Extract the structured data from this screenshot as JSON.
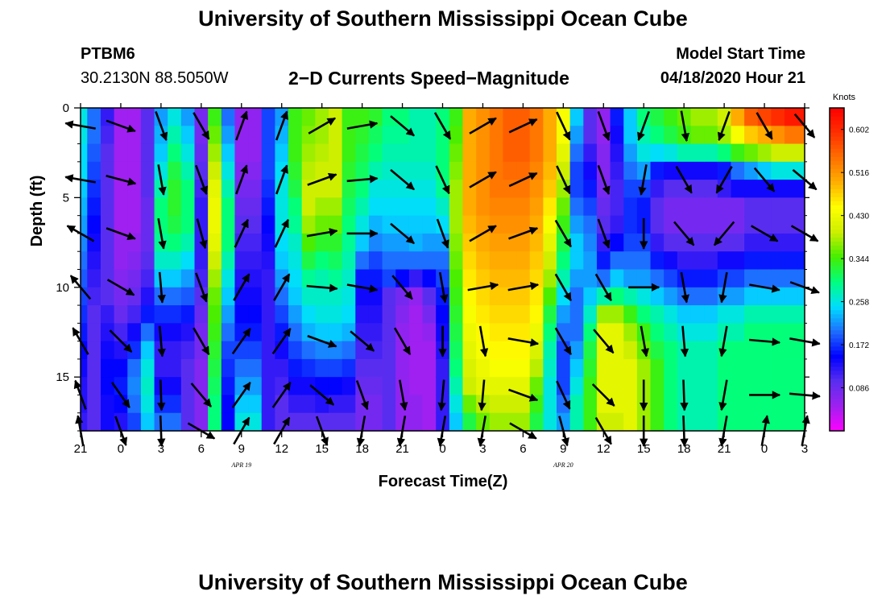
{
  "header": {
    "title": "University of Southern Mississippi Ocean Cube",
    "station": "PTBM6",
    "coordinates": "30.2130N 88.5050W",
    "subtitle": "2−D Currents Speed−Magnitude",
    "model_start_label": "Model Start Time",
    "model_start_value": "04/18/2020 Hour 21"
  },
  "footer": {
    "title": "University of Southern Mississippi Ocean Cube"
  },
  "chart_data": {
    "type": "heatmap",
    "title": "2−D Currents Speed−Magnitude",
    "xlabel": "Forecast Time(Z)",
    "ylabel": "Depth (ft)",
    "x_tick_labels": [
      "21",
      "0",
      "3",
      "6",
      "9",
      "12",
      "15",
      "18",
      "21",
      "0",
      "3",
      "6",
      "9",
      "12",
      "15",
      "18",
      "21",
      "0",
      "3"
    ],
    "date_labels": [
      {
        "label": "APR 19",
        "at_tick": 4
      },
      {
        "label": "APR 20",
        "at_tick": 12
      }
    ],
    "y_ticks": [
      0,
      5,
      10,
      15
    ],
    "ylim": [
      0,
      18
    ],
    "y_reversed": true,
    "colorbar": {
      "unit": "Knots",
      "min": 0.0,
      "max": 0.645,
      "tick_labels": [
        "0.602",
        "0.516",
        "0.430",
        "0.344",
        "0.258",
        "0.172",
        "0.086"
      ],
      "tick_values": [
        0.602,
        0.516,
        0.43,
        0.344,
        0.258,
        0.172,
        0.086
      ],
      "colors": [
        "#ff00ff",
        "#a020f0",
        "#5a2ef0",
        "#0000ff",
        "#1e6cff",
        "#00ddff",
        "#00ff80",
        "#44ee00",
        "#ccee00",
        "#ffff00",
        "#ffb000",
        "#ff7000",
        "#ff3000",
        "#ff0000"
      ]
    },
    "time_hours": [
      0,
      1,
      2,
      3,
      4,
      5,
      6,
      7,
      8,
      9,
      10,
      11,
      12,
      13,
      14,
      15,
      16,
      17,
      18,
      19,
      20,
      21,
      22,
      23,
      24,
      25,
      26,
      27,
      28,
      29,
      30,
      31,
      32,
      33,
      34,
      35,
      36,
      37,
      38,
      39,
      40,
      41,
      42,
      43,
      44,
      45,
      46,
      47,
      48,
      49,
      50,
      51,
      52,
      53,
      54
    ],
    "depth_levels_ft": [
      0.5,
      1.5,
      2.5,
      3.5,
      4.5,
      5.5,
      6.5,
      7.5,
      8.5,
      9.5,
      10.5,
      11.5,
      12.5,
      13.5,
      14.5,
      15.5,
      16.5,
      17.5
    ],
    "speed_profiles_knots": [
      [
        0.26,
        0.26,
        0.25,
        0.25,
        0.24,
        0.23,
        0.22,
        0.21,
        0.2,
        0.19,
        0.18,
        0.17,
        0.16,
        0.15,
        0.14,
        0.13,
        0.13,
        0.12
      ],
      [
        0.2,
        0.2,
        0.19,
        0.18,
        0.17,
        0.16,
        0.15,
        0.14,
        0.13,
        0.12,
        0.11,
        0.1,
        0.1,
        0.1,
        0.1,
        0.1,
        0.1,
        0.1
      ],
      [
        0.12,
        0.11,
        0.1,
        0.1,
        0.1,
        0.1,
        0.1,
        0.1,
        0.1,
        0.1,
        0.1,
        0.12,
        0.13,
        0.14,
        0.15,
        0.15,
        0.14,
        0.14
      ],
      [
        0.05,
        0.05,
        0.05,
        0.05,
        0.05,
        0.05,
        0.05,
        0.06,
        0.06,
        0.07,
        0.08,
        0.09,
        0.11,
        0.13,
        0.15,
        0.16,
        0.15,
        0.13
      ],
      [
        0.05,
        0.05,
        0.05,
        0.05,
        0.05,
        0.05,
        0.05,
        0.06,
        0.07,
        0.08,
        0.09,
        0.11,
        0.14,
        0.17,
        0.2,
        0.21,
        0.2,
        0.18
      ],
      [
        0.1,
        0.1,
        0.1,
        0.1,
        0.1,
        0.09,
        0.09,
        0.09,
        0.1,
        0.11,
        0.13,
        0.16,
        0.2,
        0.24,
        0.26,
        0.27,
        0.26,
        0.24
      ],
      [
        0.22,
        0.23,
        0.24,
        0.26,
        0.28,
        0.3,
        0.3,
        0.29,
        0.27,
        0.24,
        0.2,
        0.17,
        0.14,
        0.12,
        0.12,
        0.14,
        0.17,
        0.2
      ],
      [
        0.26,
        0.28,
        0.3,
        0.32,
        0.33,
        0.33,
        0.32,
        0.3,
        0.27,
        0.24,
        0.2,
        0.17,
        0.14,
        0.12,
        0.12,
        0.14,
        0.17,
        0.2
      ],
      [
        0.22,
        0.24,
        0.26,
        0.28,
        0.3,
        0.3,
        0.3,
        0.28,
        0.25,
        0.22,
        0.19,
        0.16,
        0.13,
        0.11,
        0.1,
        0.1,
        0.1,
        0.1
      ],
      [
        0.08,
        0.08,
        0.09,
        0.1,
        0.11,
        0.12,
        0.12,
        0.12,
        0.12,
        0.11,
        0.1,
        0.09,
        0.08,
        0.08,
        0.07,
        0.07,
        0.07,
        0.07
      ],
      [
        0.34,
        0.36,
        0.38,
        0.4,
        0.42,
        0.43,
        0.43,
        0.42,
        0.4,
        0.38,
        0.36,
        0.35,
        0.34,
        0.33,
        0.32,
        0.31,
        0.3,
        0.3
      ],
      [
        0.2,
        0.22,
        0.24,
        0.26,
        0.28,
        0.3,
        0.3,
        0.3,
        0.28,
        0.26,
        0.24,
        0.22,
        0.2,
        0.18,
        0.17,
        0.16,
        0.15,
        0.15
      ],
      [
        0.06,
        0.06,
        0.06,
        0.07,
        0.08,
        0.09,
        0.1,
        0.11,
        0.12,
        0.13,
        0.14,
        0.15,
        0.16,
        0.18,
        0.2,
        0.22,
        0.24,
        0.26
      ],
      [
        0.06,
        0.06,
        0.06,
        0.07,
        0.08,
        0.09,
        0.1,
        0.11,
        0.12,
        0.13,
        0.14,
        0.15,
        0.16,
        0.18,
        0.2,
        0.22,
        0.24,
        0.26
      ],
      [
        0.18,
        0.18,
        0.18,
        0.18,
        0.17,
        0.16,
        0.15,
        0.14,
        0.13,
        0.12,
        0.12,
        0.12,
        0.12,
        0.12,
        0.12,
        0.12,
        0.12,
        0.12
      ],
      [
        0.22,
        0.23,
        0.24,
        0.25,
        0.26,
        0.26,
        0.26,
        0.25,
        0.24,
        0.22,
        0.2,
        0.18,
        0.16,
        0.14,
        0.12,
        0.11,
        0.1,
        0.1
      ],
      [
        0.34,
        0.34,
        0.34,
        0.33,
        0.32,
        0.3,
        0.29,
        0.27,
        0.26,
        0.25,
        0.24,
        0.22,
        0.2,
        0.18,
        0.16,
        0.14,
        0.12,
        0.1
      ],
      [
        0.36,
        0.37,
        0.38,
        0.39,
        0.4,
        0.4,
        0.38,
        0.35,
        0.32,
        0.29,
        0.27,
        0.25,
        0.23,
        0.2,
        0.17,
        0.14,
        0.12,
        0.1
      ],
      [
        0.38,
        0.38,
        0.39,
        0.4,
        0.4,
        0.38,
        0.36,
        0.33,
        0.3,
        0.28,
        0.27,
        0.26,
        0.24,
        0.21,
        0.18,
        0.15,
        0.13,
        0.1
      ],
      [
        0.4,
        0.4,
        0.4,
        0.4,
        0.4,
        0.38,
        0.36,
        0.33,
        0.31,
        0.29,
        0.27,
        0.26,
        0.24,
        0.21,
        0.18,
        0.15,
        0.12,
        0.1
      ],
      [
        0.34,
        0.34,
        0.34,
        0.33,
        0.32,
        0.31,
        0.3,
        0.29,
        0.28,
        0.27,
        0.26,
        0.25,
        0.23,
        0.2,
        0.17,
        0.14,
        0.12,
        0.1
      ],
      [
        0.34,
        0.33,
        0.32,
        0.31,
        0.3,
        0.28,
        0.26,
        0.24,
        0.2,
        0.16,
        0.14,
        0.13,
        0.12,
        0.11,
        0.1,
        0.09,
        0.08,
        0.08
      ],
      [
        0.33,
        0.31,
        0.3,
        0.28,
        0.26,
        0.25,
        0.23,
        0.21,
        0.18,
        0.16,
        0.14,
        0.13,
        0.12,
        0.11,
        0.1,
        0.09,
        0.08,
        0.08
      ],
      [
        0.3,
        0.29,
        0.28,
        0.27,
        0.26,
        0.25,
        0.24,
        0.22,
        0.2,
        0.18,
        0.1,
        0.1,
        0.1,
        0.1,
        0.1,
        0.1,
        0.1,
        0.1
      ],
      [
        0.3,
        0.29,
        0.28,
        0.27,
        0.26,
        0.25,
        0.24,
        0.22,
        0.2,
        0.15,
        0.08,
        0.07,
        0.06,
        0.06,
        0.06,
        0.06,
        0.06,
        0.06
      ],
      [
        0.28,
        0.28,
        0.28,
        0.27,
        0.26,
        0.25,
        0.24,
        0.23,
        0.2,
        0.12,
        0.06,
        0.05,
        0.05,
        0.05,
        0.05,
        0.05,
        0.06,
        0.06
      ],
      [
        0.28,
        0.28,
        0.28,
        0.27,
        0.26,
        0.25,
        0.24,
        0.22,
        0.2,
        0.15,
        0.1,
        0.08,
        0.06,
        0.05,
        0.05,
        0.05,
        0.05,
        0.05
      ],
      [
        0.3,
        0.3,
        0.3,
        0.3,
        0.29,
        0.27,
        0.25,
        0.22,
        0.2,
        0.18,
        0.16,
        0.15,
        0.14,
        0.13,
        0.12,
        0.12,
        0.12,
        0.12
      ],
      [
        0.34,
        0.35,
        0.36,
        0.37,
        0.38,
        0.38,
        0.38,
        0.37,
        0.36,
        0.35,
        0.34,
        0.33,
        0.32,
        0.31,
        0.3,
        0.28,
        0.26,
        0.24
      ],
      [
        0.5,
        0.5,
        0.5,
        0.5,
        0.5,
        0.5,
        0.49,
        0.48,
        0.47,
        0.46,
        0.45,
        0.44,
        0.43,
        0.42,
        0.41,
        0.4,
        0.36,
        0.32
      ],
      [
        0.52,
        0.52,
        0.52,
        0.52,
        0.52,
        0.52,
        0.51,
        0.5,
        0.49,
        0.48,
        0.47,
        0.46,
        0.45,
        0.44,
        0.43,
        0.42,
        0.39,
        0.36
      ],
      [
        0.54,
        0.54,
        0.54,
        0.54,
        0.54,
        0.53,
        0.52,
        0.51,
        0.5,
        0.49,
        0.48,
        0.47,
        0.46,
        0.45,
        0.44,
        0.42,
        0.4,
        0.38
      ],
      [
        0.56,
        0.56,
        0.56,
        0.55,
        0.54,
        0.53,
        0.52,
        0.51,
        0.5,
        0.49,
        0.48,
        0.47,
        0.46,
        0.45,
        0.44,
        0.42,
        0.4,
        0.38
      ],
      [
        0.56,
        0.56,
        0.56,
        0.55,
        0.54,
        0.53,
        0.52,
        0.51,
        0.5,
        0.49,
        0.48,
        0.47,
        0.46,
        0.45,
        0.44,
        0.42,
        0.4,
        0.38
      ],
      [
        0.54,
        0.54,
        0.54,
        0.53,
        0.52,
        0.51,
        0.5,
        0.49,
        0.48,
        0.47,
        0.46,
        0.45,
        0.43,
        0.41,
        0.39,
        0.36,
        0.34,
        0.32
      ],
      [
        0.5,
        0.5,
        0.5,
        0.49,
        0.48,
        0.46,
        0.44,
        0.42,
        0.4,
        0.38,
        0.35,
        0.32,
        0.3,
        0.28,
        0.27,
        0.26,
        0.26,
        0.26
      ],
      [
        0.44,
        0.44,
        0.42,
        0.4,
        0.38,
        0.36,
        0.34,
        0.32,
        0.3,
        0.28,
        0.25,
        0.22,
        0.2,
        0.18,
        0.18,
        0.18,
        0.2,
        0.22
      ],
      [
        0.24,
        0.22,
        0.2,
        0.18,
        0.18,
        0.2,
        0.22,
        0.24,
        0.24,
        0.22,
        0.2,
        0.2,
        0.2,
        0.22,
        0.24,
        0.26,
        0.28,
        0.28
      ],
      [
        0.1,
        0.1,
        0.12,
        0.14,
        0.16,
        0.18,
        0.2,
        0.21,
        0.22,
        0.22,
        0.24,
        0.27,
        0.3,
        0.32,
        0.33,
        0.34,
        0.34,
        0.34
      ],
      [
        0.06,
        0.06,
        0.07,
        0.07,
        0.08,
        0.09,
        0.1,
        0.12,
        0.16,
        0.2,
        0.28,
        0.38,
        0.42,
        0.42,
        0.42,
        0.42,
        0.42,
        0.4
      ],
      [
        0.16,
        0.14,
        0.13,
        0.12,
        0.11,
        0.11,
        0.12,
        0.15,
        0.2,
        0.24,
        0.3,
        0.38,
        0.42,
        0.42,
        0.42,
        0.42,
        0.42,
        0.4
      ],
      [
        0.24,
        0.24,
        0.22,
        0.2,
        0.18,
        0.17,
        0.17,
        0.18,
        0.2,
        0.22,
        0.28,
        0.34,
        0.38,
        0.4,
        0.42,
        0.42,
        0.42,
        0.42
      ],
      [
        0.3,
        0.28,
        0.26,
        0.22,
        0.18,
        0.16,
        0.16,
        0.18,
        0.2,
        0.22,
        0.26,
        0.3,
        0.34,
        0.36,
        0.38,
        0.38,
        0.38,
        0.38
      ],
      [
        0.32,
        0.3,
        0.25,
        0.16,
        0.12,
        0.1,
        0.1,
        0.12,
        0.16,
        0.2,
        0.24,
        0.28,
        0.3,
        0.32,
        0.34,
        0.34,
        0.34,
        0.34
      ],
      [
        0.34,
        0.32,
        0.26,
        0.14,
        0.1,
        0.08,
        0.08,
        0.1,
        0.14,
        0.18,
        0.22,
        0.26,
        0.28,
        0.3,
        0.3,
        0.3,
        0.3,
        0.3
      ],
      [
        0.36,
        0.34,
        0.28,
        0.14,
        0.1,
        0.08,
        0.08,
        0.1,
        0.12,
        0.16,
        0.2,
        0.24,
        0.26,
        0.28,
        0.28,
        0.28,
        0.28,
        0.28
      ],
      [
        0.38,
        0.36,
        0.28,
        0.14,
        0.1,
        0.08,
        0.08,
        0.1,
        0.12,
        0.16,
        0.2,
        0.24,
        0.26,
        0.28,
        0.28,
        0.28,
        0.28,
        0.28
      ],
      [
        0.38,
        0.36,
        0.28,
        0.14,
        0.1,
        0.08,
        0.08,
        0.1,
        0.12,
        0.16,
        0.2,
        0.24,
        0.26,
        0.28,
        0.28,
        0.28,
        0.28,
        0.28
      ],
      [
        0.4,
        0.38,
        0.3,
        0.16,
        0.12,
        0.08,
        0.08,
        0.1,
        0.14,
        0.18,
        0.22,
        0.26,
        0.28,
        0.3,
        0.3,
        0.3,
        0.3,
        0.3
      ],
      [
        0.5,
        0.44,
        0.34,
        0.2,
        0.14,
        0.08,
        0.08,
        0.1,
        0.14,
        0.18,
        0.22,
        0.26,
        0.28,
        0.3,
        0.3,
        0.3,
        0.3,
        0.3
      ],
      [
        0.56,
        0.48,
        0.36,
        0.22,
        0.14,
        0.1,
        0.1,
        0.12,
        0.16,
        0.2,
        0.24,
        0.28,
        0.3,
        0.3,
        0.3,
        0.3,
        0.3,
        0.3
      ],
      [
        0.58,
        0.5,
        0.38,
        0.24,
        0.14,
        0.1,
        0.1,
        0.12,
        0.16,
        0.2,
        0.24,
        0.28,
        0.3,
        0.3,
        0.3,
        0.3,
        0.3,
        0.3
      ],
      [
        0.6,
        0.52,
        0.4,
        0.26,
        0.14,
        0.1,
        0.1,
        0.12,
        0.16,
        0.2,
        0.24,
        0.28,
        0.3,
        0.3,
        0.3,
        0.3,
        0.3,
        0.3
      ],
      [
        0.62,
        0.54,
        0.4,
        0.26,
        0.14,
        0.1,
        0.1,
        0.12,
        0.16,
        0.2,
        0.24,
        0.28,
        0.3,
        0.3,
        0.3,
        0.3,
        0.3,
        0.3
      ],
      [
        0.62,
        0.54,
        0.4,
        0.26,
        0.14,
        0.1,
        0.1,
        0.12,
        0.16,
        0.2,
        0.24,
        0.28,
        0.3,
        0.3,
        0.3,
        0.3,
        0.3,
        0.3
      ]
    ],
    "vector_depths_ft": [
      1,
      4,
      7,
      10,
      13,
      16,
      18
    ],
    "vector_times_h": [
      0,
      3,
      6,
      9,
      12,
      15,
      18,
      21,
      24,
      27,
      30,
      33,
      36,
      39,
      42,
      45,
      48,
      51,
      54
    ],
    "vector_directions_deg": [
      [
        280,
        280,
        300,
        320,
        330,
        340,
        350
      ],
      [
        110,
        105,
        110,
        120,
        135,
        145,
        160
      ],
      [
        160,
        170,
        170,
        175,
        175,
        178,
        178
      ],
      [
        150,
        160,
        165,
        160,
        150,
        140,
        120
      ],
      [
        20,
        20,
        25,
        30,
        35,
        35,
        30
      ],
      [
        20,
        20,
        25,
        30,
        35,
        35,
        30
      ],
      [
        60,
        70,
        80,
        95,
        110,
        130,
        160
      ],
      [
        80,
        85,
        90,
        100,
        130,
        160,
        190
      ],
      [
        130,
        130,
        130,
        140,
        150,
        170,
        190
      ],
      [
        150,
        155,
        160,
        170,
        180,
        185,
        190
      ],
      [
        60,
        60,
        60,
        80,
        170,
        185,
        190
      ],
      [
        65,
        65,
        70,
        80,
        100,
        110,
        120
      ],
      [
        155,
        155,
        150,
        150,
        150,
        155,
        165
      ],
      [
        160,
        160,
        160,
        150,
        140,
        135,
        150
      ],
      [
        200,
        190,
        180,
        90,
        170,
        180,
        180
      ],
      [
        170,
        150,
        140,
        170,
        175,
        178,
        178
      ],
      [
        200,
        210,
        220,
        190,
        190,
        190,
        190
      ],
      [
        150,
        140,
        120,
        100,
        95,
        90,
        10
      ],
      [
        140,
        130,
        120,
        110,
        100,
        95,
        10
      ]
    ],
    "vector_lengths_rel": [
      [
        0.8,
        0.9,
        0.9,
        0.8,
        0.7,
        0.7,
        0.6
      ],
      [
        0.8,
        0.8,
        0.8,
        0.8,
        0.7,
        0.7,
        0.6
      ],
      [
        0.9,
        0.9,
        0.9,
        0.9,
        0.9,
        0.9,
        0.8
      ],
      [
        1.0,
        1.0,
        1.0,
        1.0,
        0.9,
        0.9,
        0.8
      ]
    ]
  }
}
